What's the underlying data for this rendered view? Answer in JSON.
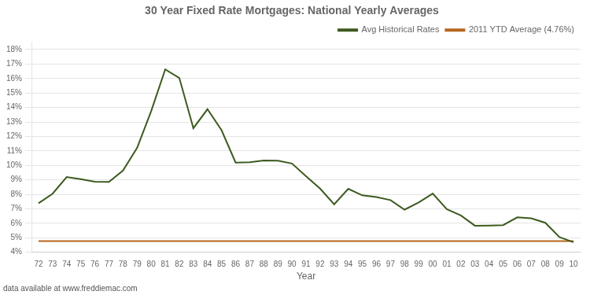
{
  "chart_data": {
    "type": "line",
    "title": "30 Year Fixed Rate Mortgages: National Yearly Averages",
    "x_label": "Year",
    "annotation": "data available at www.freddiemac.com",
    "categories": [
      "72",
      "73",
      "74",
      "75",
      "76",
      "77",
      "78",
      "79",
      "80",
      "81",
      "82",
      "83",
      "84",
      "85",
      "86",
      "87",
      "88",
      "89",
      "90",
      "91",
      "92",
      "93",
      "94",
      "95",
      "96",
      "97",
      "98",
      "99",
      "00",
      "01",
      "02",
      "03",
      "04",
      "05",
      "06",
      "07",
      "08",
      "09",
      "10"
    ],
    "series": [
      {
        "name": "Avg Historical Rates",
        "color": "#3d5a1e",
        "values": [
          7.38,
          8.04,
          9.19,
          9.05,
          8.87,
          8.85,
          9.64,
          11.2,
          13.74,
          16.63,
          16.04,
          12.57,
          13.88,
          12.43,
          10.19,
          10.21,
          10.34,
          10.32,
          10.13,
          9.25,
          8.39,
          7.31,
          8.38,
          7.93,
          7.81,
          7.6,
          6.94,
          7.44,
          8.05,
          6.97,
          6.54,
          5.83,
          5.84,
          5.87,
          6.41,
          6.34,
          6.03,
          5.04,
          4.69
        ]
      },
      {
        "name": "2011 YTD Average (4.76%)",
        "color": "#b5651d",
        "values": [
          4.76,
          4.76,
          4.76,
          4.76,
          4.76,
          4.76,
          4.76,
          4.76,
          4.76,
          4.76,
          4.76,
          4.76,
          4.76,
          4.76,
          4.76,
          4.76,
          4.76,
          4.76,
          4.76,
          4.76,
          4.76,
          4.76,
          4.76,
          4.76,
          4.76,
          4.76,
          4.76,
          4.76,
          4.76,
          4.76,
          4.76,
          4.76,
          4.76,
          4.76,
          4.76,
          4.76,
          4.76,
          4.76,
          4.76
        ]
      }
    ],
    "ylim": [
      4.0,
      18.5
    ],
    "yticks": [
      {
        "value": 4,
        "label": "4%"
      },
      {
        "value": 5,
        "label": "5%"
      },
      {
        "value": 6,
        "label": "6%"
      },
      {
        "value": 7,
        "label": "7%"
      },
      {
        "value": 8,
        "label": "8%"
      },
      {
        "value": 9,
        "label": "9%"
      },
      {
        "value": 10,
        "label": "10%"
      },
      {
        "value": 11,
        "label": "11%"
      },
      {
        "value": 12,
        "label": "12%"
      },
      {
        "value": 13,
        "label": "13%"
      },
      {
        "value": 14,
        "label": "14%"
      },
      {
        "value": 15,
        "label": "15%"
      },
      {
        "value": 16,
        "label": "16%"
      },
      {
        "value": 17,
        "label": "17%"
      },
      {
        "value": 18,
        "label": "18%"
      }
    ],
    "grid": true,
    "legend": "upper right"
  }
}
